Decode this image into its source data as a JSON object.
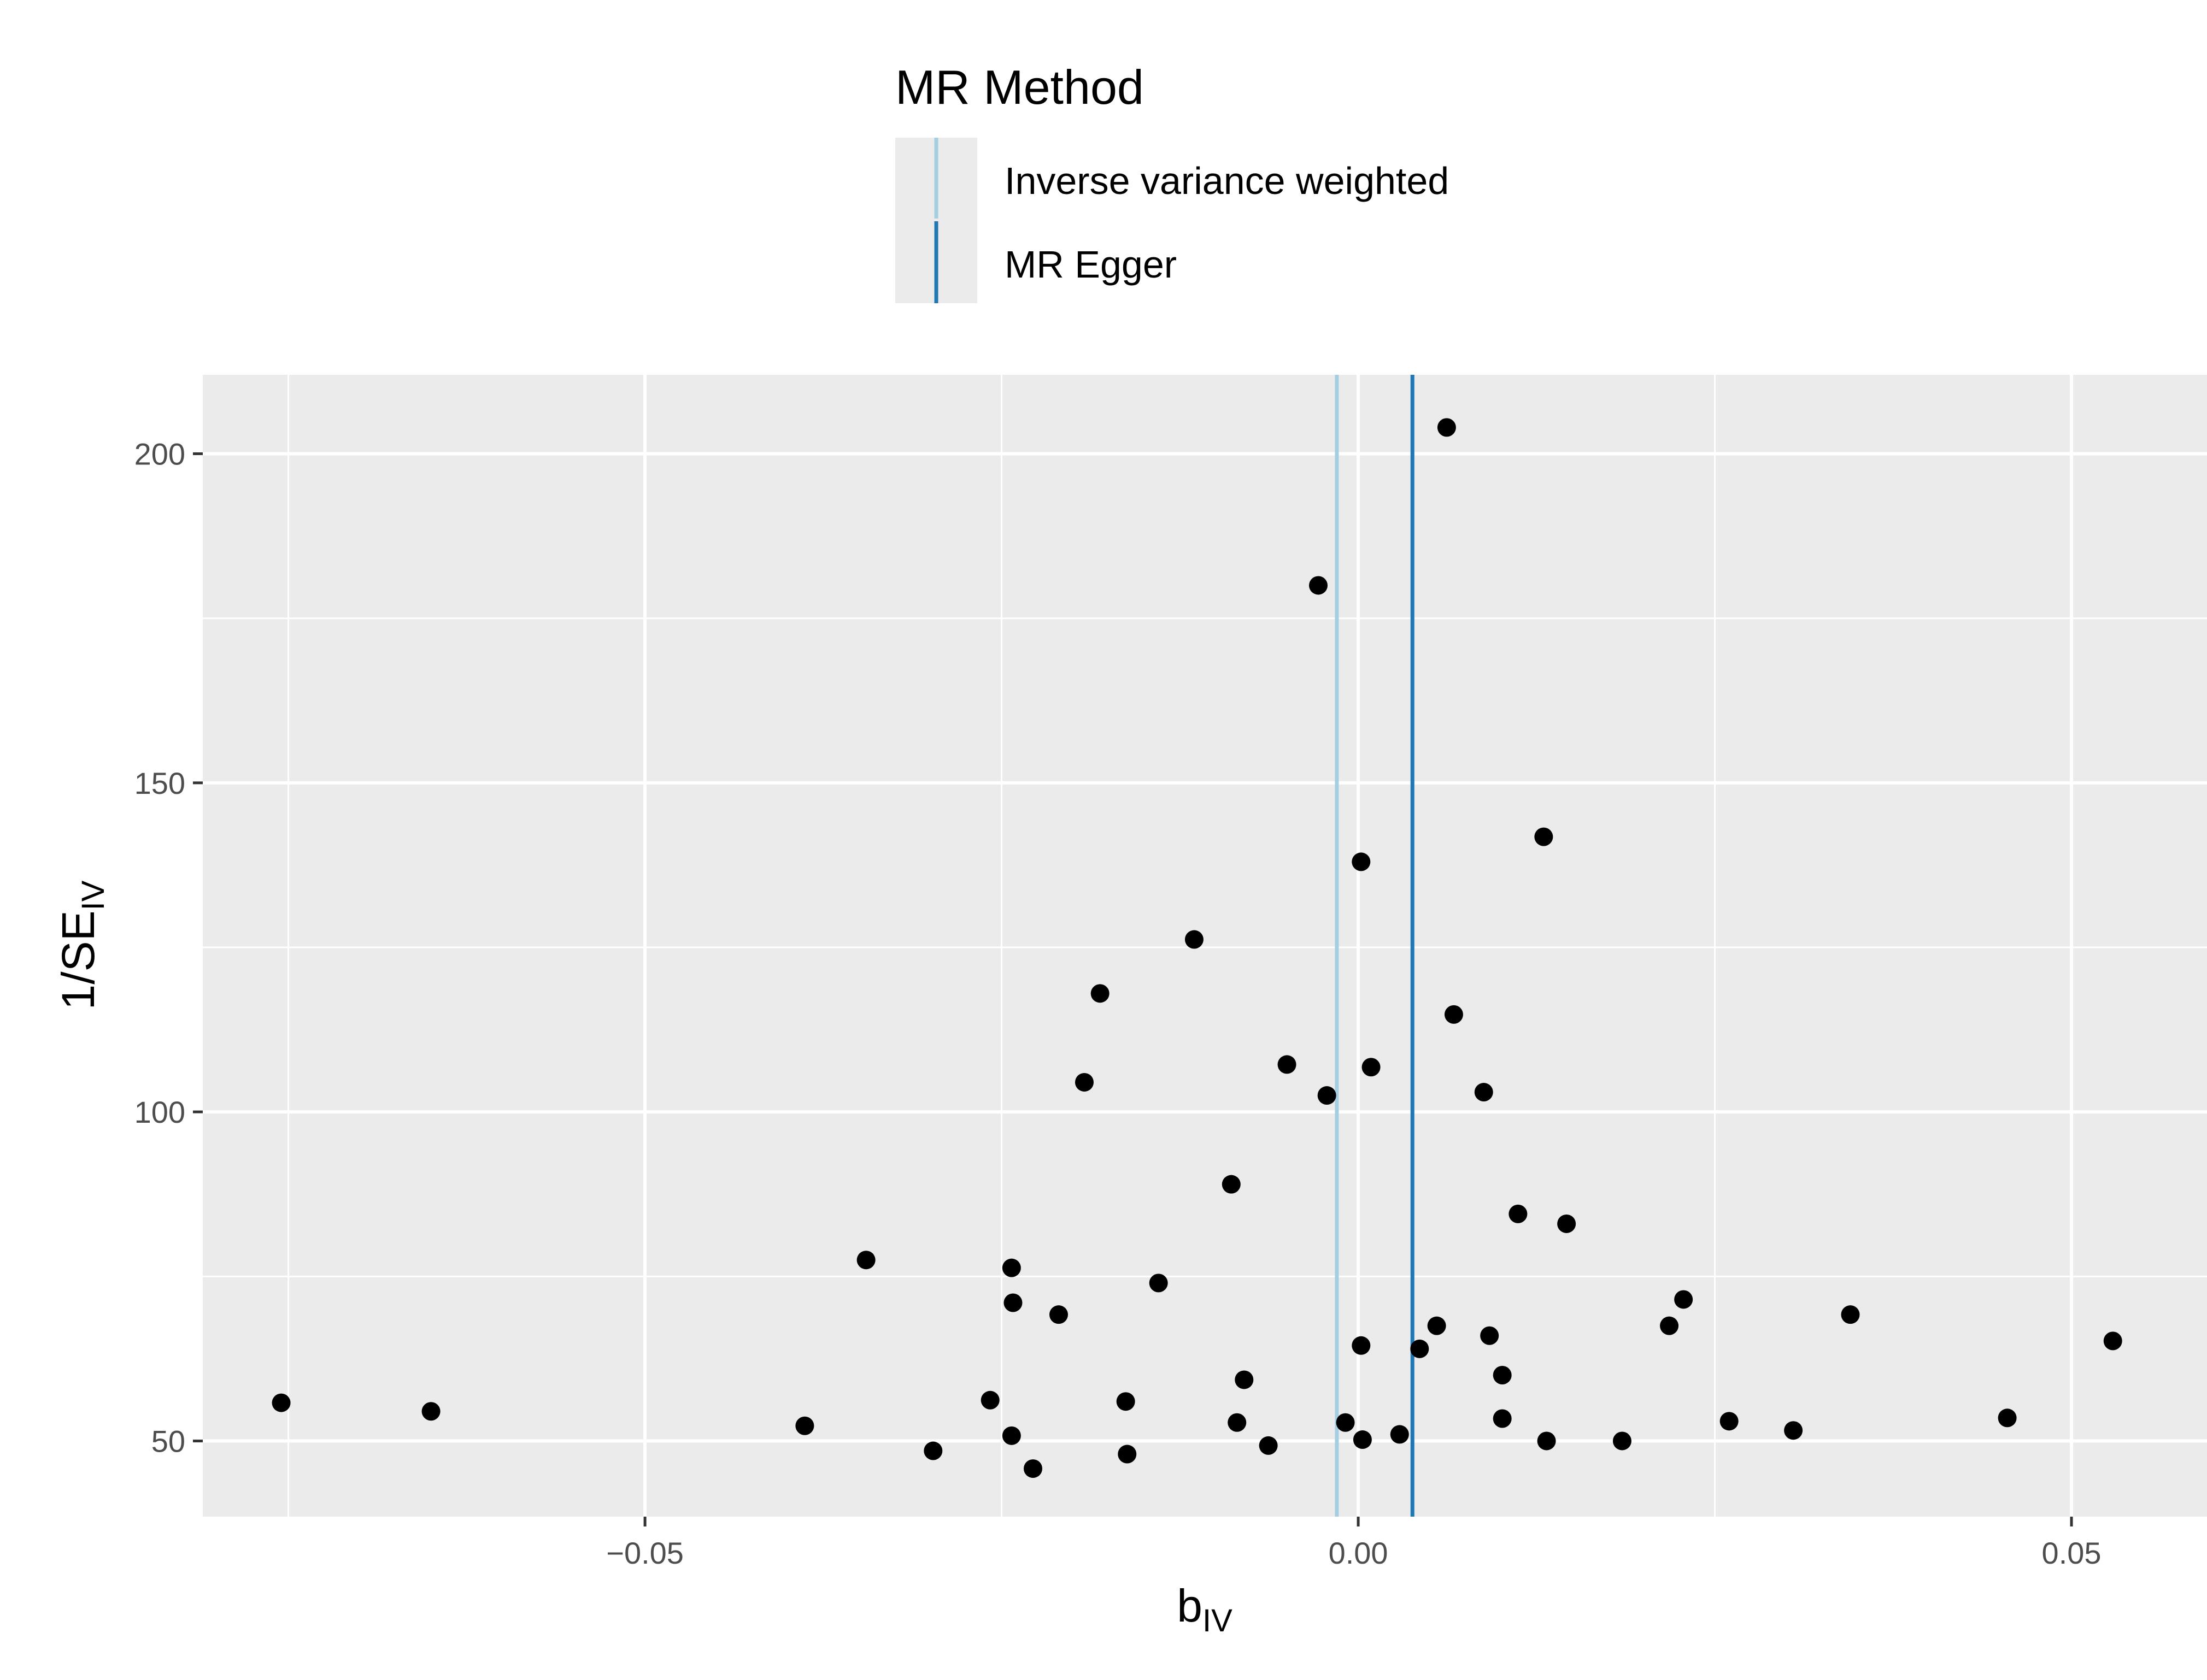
{
  "chart_data": {
    "type": "scatter",
    "xlabel": "b",
    "xlabel_sub": "IV",
    "ylabel": "1/SE",
    "ylabel_sub": "IV",
    "xlim": [
      -0.081,
      0.0595
    ],
    "ylim": [
      38.5,
      212
    ],
    "x_ticks": [
      -0.05,
      0.0,
      0.05
    ],
    "x_tick_labels": [
      "−0.05",
      "0.00",
      "0.05"
    ],
    "y_ticks": [
      50,
      100,
      150,
      200
    ],
    "y_tick_labels": [
      "50",
      "100",
      "150",
      "200"
    ],
    "grid": true,
    "legend": {
      "title": "MR Method",
      "position": "top",
      "entries": [
        {
          "label": "Inverse variance weighted",
          "color": "#a6cee3"
        },
        {
          "label": "MR Egger",
          "color": "#1f78b4"
        }
      ]
    },
    "vlines": [
      {
        "method": "Inverse variance weighted",
        "x": -0.0015,
        "color": "#a6cee3"
      },
      {
        "method": "MR Egger",
        "x": 0.0038,
        "color": "#1f78b4"
      }
    ],
    "points": [
      {
        "x": -0.0755,
        "y": 55.8
      },
      {
        "x": -0.065,
        "y": 54.5
      },
      {
        "x": -0.0388,
        "y": 52.3
      },
      {
        "x": -0.0345,
        "y": 77.5
      },
      {
        "x": -0.0298,
        "y": 48.5
      },
      {
        "x": -0.0258,
        "y": 56.2
      },
      {
        "x": -0.0243,
        "y": 76.3
      },
      {
        "x": -0.0242,
        "y": 71.0
      },
      {
        "x": -0.0243,
        "y": 50.8
      },
      {
        "x": -0.0228,
        "y": 45.8
      },
      {
        "x": -0.021,
        "y": 69.2
      },
      {
        "x": -0.0192,
        "y": 104.5
      },
      {
        "x": -0.0181,
        "y": 118.0
      },
      {
        "x": -0.0163,
        "y": 56.0
      },
      {
        "x": -0.0162,
        "y": 48.0
      },
      {
        "x": -0.014,
        "y": 74.0
      },
      {
        "x": -0.0115,
        "y": 126.2
      },
      {
        "x": -0.0089,
        "y": 89.0
      },
      {
        "x": -0.0085,
        "y": 52.8
      },
      {
        "x": -0.008,
        "y": 59.3
      },
      {
        "x": -0.0063,
        "y": 49.3
      },
      {
        "x": -0.005,
        "y": 107.2
      },
      {
        "x": -0.0028,
        "y": 180.0
      },
      {
        "x": -0.0022,
        "y": 102.5
      },
      {
        "x": -0.0009,
        "y": 52.8
      },
      {
        "x": 0.0002,
        "y": 138.0
      },
      {
        "x": 0.0002,
        "y": 64.5
      },
      {
        "x": 0.0003,
        "y": 50.2
      },
      {
        "x": 0.0009,
        "y": 106.8
      },
      {
        "x": 0.0029,
        "y": 51.0
      },
      {
        "x": 0.0043,
        "y": 64.0
      },
      {
        "x": 0.0055,
        "y": 67.5
      },
      {
        "x": 0.0062,
        "y": 204.0
      },
      {
        "x": 0.0067,
        "y": 114.8
      },
      {
        "x": 0.0088,
        "y": 103.0
      },
      {
        "x": 0.0092,
        "y": 66.0
      },
      {
        "x": 0.0101,
        "y": 60.0
      },
      {
        "x": 0.0101,
        "y": 53.4
      },
      {
        "x": 0.0112,
        "y": 84.5
      },
      {
        "x": 0.013,
        "y": 141.8
      },
      {
        "x": 0.0132,
        "y": 50.0
      },
      {
        "x": 0.0146,
        "y": 83.0
      },
      {
        "x": 0.0185,
        "y": 50.0
      },
      {
        "x": 0.0218,
        "y": 67.5
      },
      {
        "x": 0.0228,
        "y": 71.5
      },
      {
        "x": 0.026,
        "y": 53.0
      },
      {
        "x": 0.0305,
        "y": 51.6
      },
      {
        "x": 0.0345,
        "y": 69.2
      },
      {
        "x": 0.0455,
        "y": 53.5
      },
      {
        "x": 0.0529,
        "y": 65.2
      }
    ]
  }
}
